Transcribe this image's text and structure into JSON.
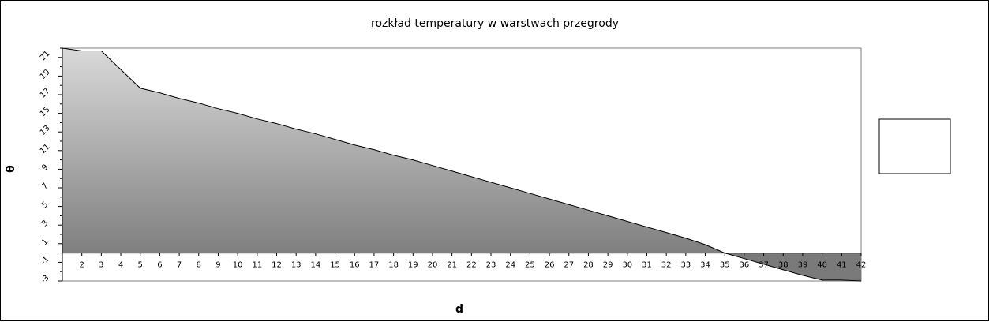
{
  "chart_data": {
    "type": "area",
    "title": "rozkład temperatury w warstwach przegrody",
    "xlabel": "d",
    "ylabel": "θ",
    "x": [
      1,
      2,
      3,
      4,
      5,
      6,
      7,
      8,
      9,
      10,
      11,
      12,
      13,
      14,
      15,
      16,
      17,
      18,
      19,
      20,
      21,
      22,
      23,
      24,
      25,
      26,
      27,
      28,
      29,
      30,
      31,
      32,
      33,
      34,
      35,
      36,
      37,
      38,
      39,
      40,
      41,
      42
    ],
    "x_tick_labels": [
      "2",
      "3",
      "4",
      "5",
      "6",
      "7",
      "8",
      "9",
      "10",
      "11",
      "12",
      "13",
      "14",
      "15",
      "16",
      "17",
      "18",
      "19",
      "20",
      "21",
      "22",
      "23",
      "24",
      "25",
      "26",
      "27",
      "28",
      "29",
      "30",
      "31",
      "32",
      "33",
      "34",
      "35",
      "36",
      "37",
      "38",
      "39",
      "40",
      "41",
      "42"
    ],
    "y_tick_labels": [
      "-3",
      "-1",
      "1",
      "3",
      "5",
      "7",
      "9",
      "11",
      "13",
      "15",
      "17",
      "19",
      "21"
    ],
    "ylim": [
      -3,
      22
    ],
    "series": [
      {
        "values": [
          22.0,
          21.7,
          21.7,
          19.7,
          17.7,
          17.2,
          16.6,
          16.1,
          15.5,
          15.0,
          14.4,
          13.9,
          13.3,
          12.8,
          12.2,
          11.6,
          11.1,
          10.5,
          10.0,
          9.4,
          8.8,
          8.2,
          7.6,
          7.0,
          6.4,
          5.8,
          5.2,
          4.6,
          4.0,
          3.4,
          2.8,
          2.2,
          1.6,
          0.9,
          0.0,
          -0.6,
          -1.2,
          -1.8,
          -2.4,
          -2.9,
          -2.9,
          -3.0
        ]
      }
    ],
    "grid": false,
    "legend": "right",
    "colors": {
      "fill_top": "#d9d9d9",
      "fill_bottom": "#808080",
      "fill_negative": "#7a7a7a",
      "line": "#000000",
      "frame": "#7f7f7f"
    }
  }
}
